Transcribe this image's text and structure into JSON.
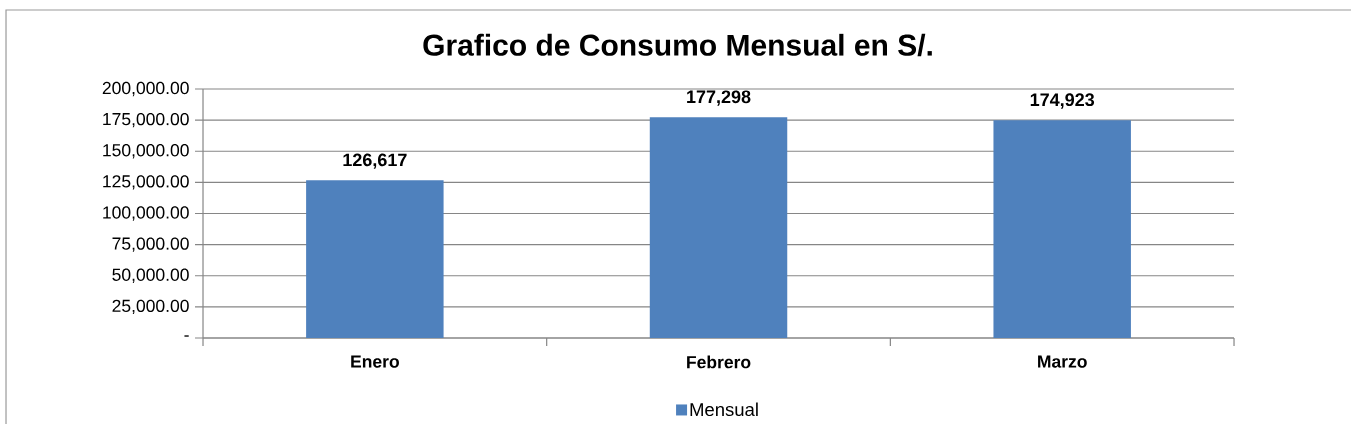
{
  "chart_data": {
    "type": "bar",
    "title": "Grafico de Consumo Mensual en S/.",
    "categories": [
      "Enero",
      "Febrero",
      "Marzo"
    ],
    "series": [
      {
        "name": "Mensual",
        "color": "#4f81bd",
        "values": [
          126617,
          177298,
          174923
        ],
        "value_labels": [
          "126,617",
          "177,298",
          "174,923"
        ]
      }
    ],
    "ylim": [
      0,
      200000
    ],
    "yticks": [
      {
        "value": 0,
        "label": "-"
      },
      {
        "value": 25000,
        "label": "25,000.00"
      },
      {
        "value": 50000,
        "label": "50,000.00"
      },
      {
        "value": 75000,
        "label": "75,000.00"
      },
      {
        "value": 100000,
        "label": "100,000.00"
      },
      {
        "value": 125000,
        "label": "125,000.00"
      },
      {
        "value": 150000,
        "label": "150,000.00"
      },
      {
        "value": 175000,
        "label": "175,000.00"
      },
      {
        "value": 200000,
        "label": "200,000.00"
      }
    ],
    "grid": "y",
    "legend": "bottom"
  }
}
